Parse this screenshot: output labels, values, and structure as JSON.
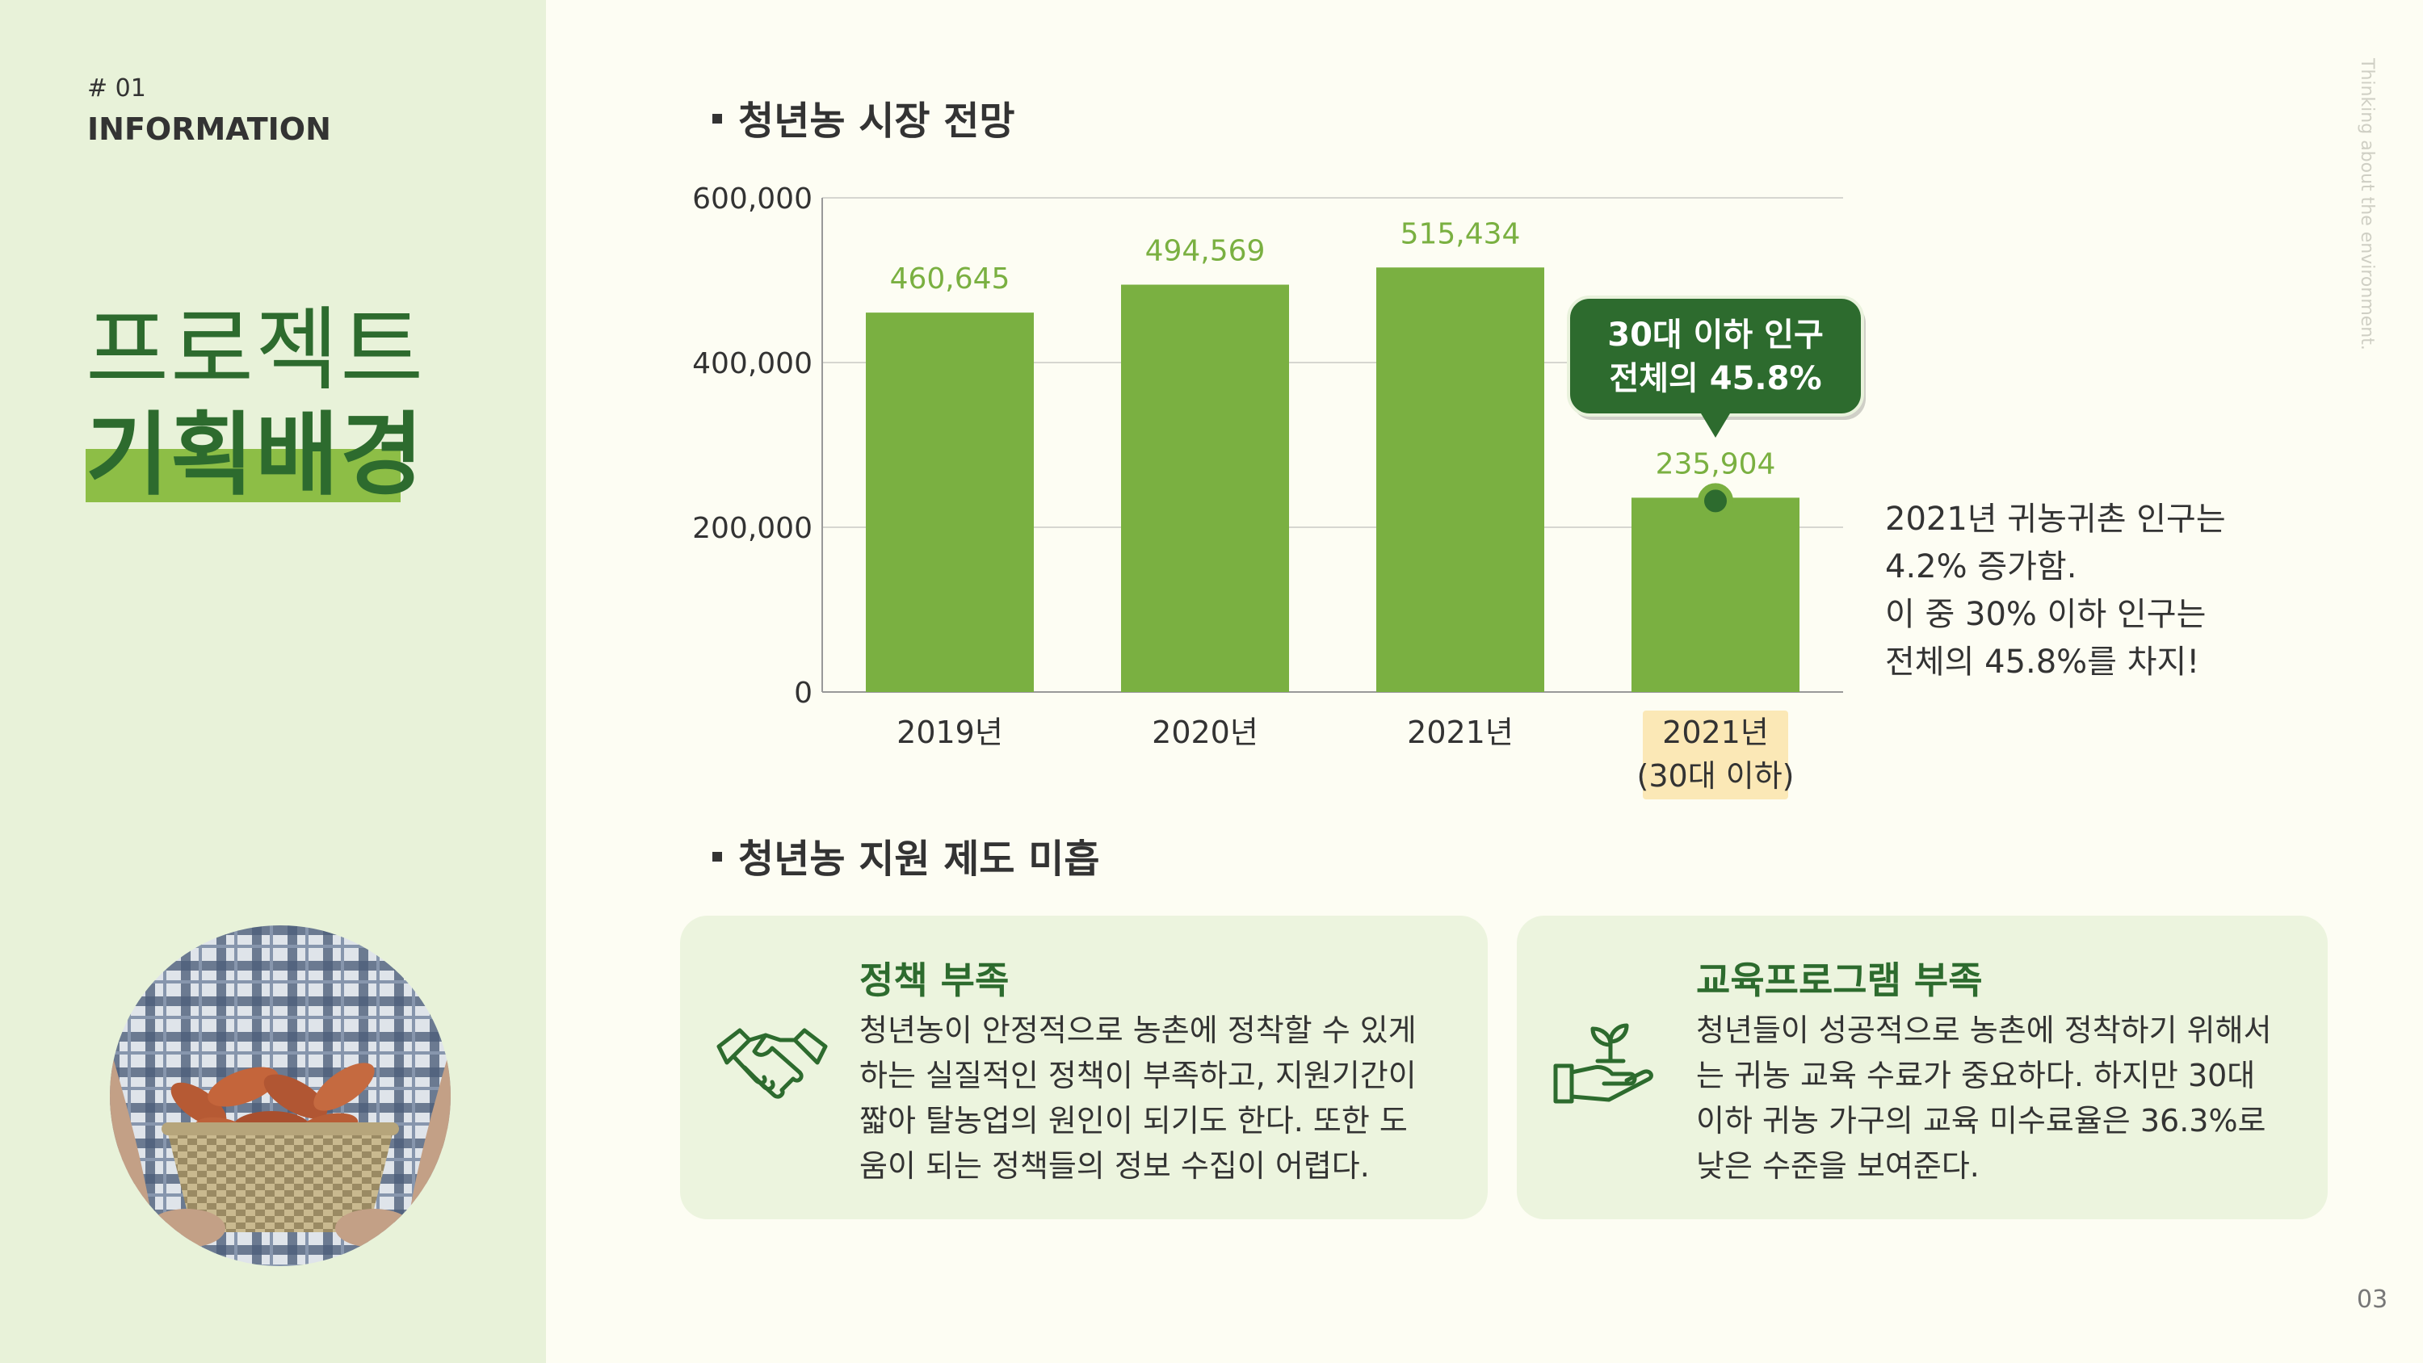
{
  "sidebar": {
    "section_number": "# 01",
    "section_label": "INFORMATION",
    "title_line1": "프로젝트",
    "title_line2": "기획배경"
  },
  "vertical_text": "Thinking about the environment.",
  "page_number": "03",
  "section1": {
    "heading": "청년농 시장 전망"
  },
  "chart_data": {
    "type": "bar",
    "categories": [
      "2019년",
      "2020년",
      "2021년",
      "2021년\n(30대 이하)"
    ],
    "values": [
      460645,
      494569,
      515434,
      235904
    ],
    "value_labels": [
      "460,645",
      "494,569",
      "515,434",
      "235,904"
    ],
    "yticks": [
      "0",
      "200,000",
      "400,000",
      "600,000"
    ],
    "ylim": [
      0,
      600000
    ],
    "grid": true,
    "bar_color": "#7ab041",
    "label_color": "#7ab041",
    "highlight_index": 3,
    "callout": {
      "line1": "30대 이하 인구",
      "line2": "전체의 45.8%"
    }
  },
  "note": {
    "lines": [
      "2021년 귀농귀촌 인구는",
      "4.2% 증가함.",
      "이 중 30% 이하 인구는",
      "전체의 45.8%를 차지!"
    ]
  },
  "section2": {
    "heading": "청년농 지원 제도 미흡"
  },
  "cards": [
    {
      "icon": "handshake-icon",
      "title": "정책 부족",
      "lines": [
        "청년농이 안정적으로 농촌에 정착할 수 있게",
        "하는 실질적인 정책이 부족하고, 지원기간이",
        "짧아 탈농업의 원인이 되기도 한다. 또한 도",
        "움이 되는 정책들의 정보 수집이 어렵다."
      ]
    },
    {
      "icon": "hand-sprout-icon",
      "title": "교육프로그램 부족",
      "lines": [
        "청년들이 성공적으로 농촌에 정착하기 위해서",
        "는 귀농 교육 수료가 중요하다. 하지만 30대",
        "이하 귀농 가구의 교육 미수료율은 36.3%로",
        "낮은 수준을 보여준다."
      ]
    }
  ],
  "colors": {
    "accent": "#2d6b2e",
    "bar": "#7ab041",
    "sidebar_bg": "#e8f2d9",
    "card_bg": "#ecf4de",
    "page_bg": "#fdfdf3"
  }
}
